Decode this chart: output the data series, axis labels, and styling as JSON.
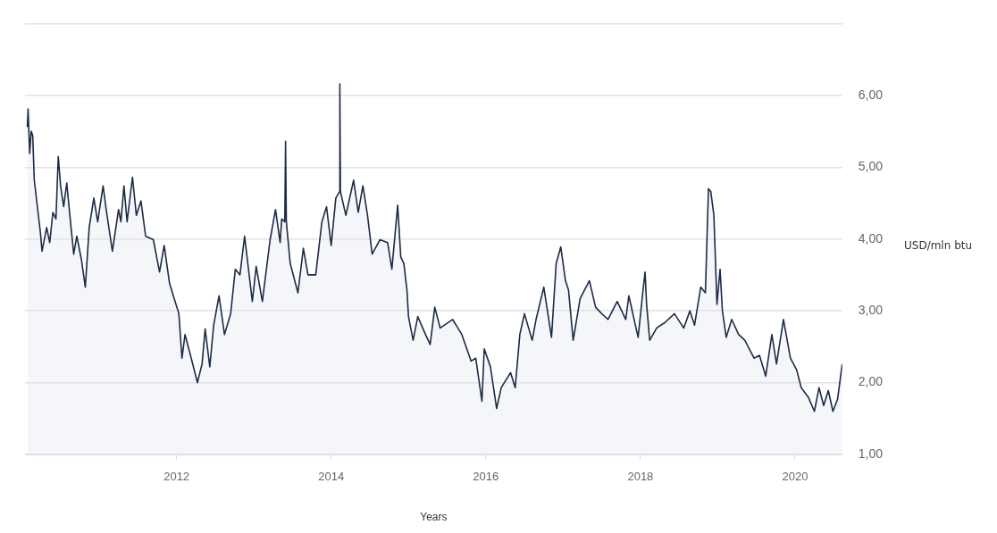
{
  "chart_data": {
    "type": "area",
    "xlabel": "Years",
    "ylabel": "USD/mln btu",
    "xlim": [
      2010.04,
      2020.61
    ],
    "xticks": [
      2012,
      2014,
      2016,
      2018,
      2020
    ],
    "ylim": [
      1,
      7
    ],
    "yticks": [
      {
        "value": 1,
        "label": "1,00"
      },
      {
        "value": 2,
        "label": "2,00"
      },
      {
        "value": 3,
        "label": "3,00"
      },
      {
        "value": 4,
        "label": "4,00"
      },
      {
        "value": 5,
        "label": "5,00"
      },
      {
        "value": 6,
        "label": "6,00"
      },
      {
        "value": 7,
        "label": null
      }
    ],
    "grid": "y",
    "legend": false,
    "marker": "none",
    "series": [
      {
        "color": "#1c2b45",
        "x": [
          2010.07,
          2010.08,
          2010.1,
          2010.12,
          2010.14,
          2010.16,
          2010.24,
          2010.26,
          2010.32,
          2010.36,
          2010.4,
          2010.44,
          2010.47,
          2010.5,
          2010.54,
          2010.58,
          2010.62,
          2010.67,
          2010.71,
          2010.77,
          2010.82,
          2010.87,
          2010.93,
          2010.98,
          2011.05,
          2011.09,
          2011.17,
          2011.25,
          2011.28,
          2011.32,
          2011.36,
          2011.43,
          2011.48,
          2011.54,
          2011.6,
          2011.7,
          2011.78,
          2011.84,
          2011.91,
          2011.97,
          2012.03,
          2012.07,
          2012.11,
          2012.19,
          2012.27,
          2012.33,
          2012.37,
          2012.43,
          2012.48,
          2012.55,
          2012.62,
          2012.7,
          2012.76,
          2012.82,
          2012.88,
          2012.98,
          2013.03,
          2013.11,
          2013.21,
          2013.28,
          2013.34,
          2013.36,
          2013.4,
          2013.41,
          2013.42,
          2013.47,
          2013.57,
          2013.64,
          2013.7,
          2013.8,
          2013.88,
          2013.94,
          2014.0,
          2014.06,
          2014.108,
          2014.112,
          2014.12,
          2014.19,
          2014.29,
          2014.35,
          2014.41,
          2014.47,
          2014.53,
          2014.63,
          2014.73,
          2014.785,
          2014.86,
          2014.9,
          2014.94,
          2014.98,
          2015.0,
          2015.06,
          2015.12,
          2015.22,
          2015.28,
          2015.34,
          2015.41,
          2015.57,
          2015.69,
          2015.81,
          2015.87,
          2015.95,
          2015.98,
          2016.06,
          2016.14,
          2016.2,
          2016.32,
          2016.38,
          2016.44,
          2016.5,
          2016.6,
          2016.65,
          2016.75,
          2016.85,
          2016.91,
          2016.97,
          2017.03,
          2017.07,
          2017.13,
          2017.22,
          2017.34,
          2017.42,
          2017.5,
          2017.58,
          2017.7,
          2017.81,
          2017.85,
          2017.97,
          2018.03,
          2018.06,
          2018.08,
          2018.12,
          2018.21,
          2018.32,
          2018.44,
          2018.56,
          2018.64,
          2018.7,
          2018.78,
          2018.84,
          2018.88,
          2018.91,
          2018.95,
          2018.99,
          2019.03,
          2019.06,
          2019.11,
          2019.18,
          2019.27,
          2019.35,
          2019.47,
          2019.54,
          2019.62,
          2019.7,
          2019.76,
          2019.85,
          2019.94,
          2020.02,
          2020.08,
          2020.17,
          2020.25,
          2020.31,
          2020.37,
          2020.43,
          2020.49,
          2020.55,
          2020.61
        ],
        "values": [
          5.56,
          5.81,
          5.19,
          5.5,
          5.44,
          4.82,
          4.08,
          3.83,
          4.16,
          3.95,
          4.37,
          4.28,
          5.15,
          4.74,
          4.45,
          4.78,
          4.33,
          3.79,
          4.04,
          3.71,
          3.33,
          4.16,
          4.57,
          4.24,
          4.74,
          4.41,
          3.83,
          4.41,
          4.24,
          4.74,
          4.24,
          4.86,
          4.33,
          4.53,
          4.04,
          3.99,
          3.54,
          3.91,
          3.38,
          3.17,
          2.96,
          2.34,
          2.67,
          2.34,
          2.0,
          2.26,
          2.75,
          2.22,
          2.8,
          3.21,
          2.67,
          2.96,
          3.58,
          3.5,
          4.04,
          3.13,
          3.62,
          3.13,
          3.99,
          4.41,
          3.95,
          4.28,
          4.24,
          5.36,
          4.24,
          3.66,
          3.25,
          3.87,
          3.5,
          3.5,
          4.24,
          4.45,
          3.91,
          4.57,
          4.66,
          6.16,
          4.66,
          4.33,
          4.82,
          4.37,
          4.74,
          4.33,
          3.79,
          3.99,
          3.95,
          3.58,
          4.47,
          3.75,
          3.66,
          3.29,
          2.92,
          2.59,
          2.92,
          2.67,
          2.53,
          3.05,
          2.76,
          2.88,
          2.67,
          2.3,
          2.34,
          1.74,
          2.47,
          2.22,
          1.64,
          1.93,
          2.14,
          1.93,
          2.67,
          2.96,
          2.59,
          2.88,
          3.33,
          2.63,
          3.66,
          3.89,
          3.42,
          3.29,
          2.59,
          3.17,
          3.42,
          3.05,
          2.96,
          2.88,
          3.13,
          2.88,
          3.21,
          2.63,
          3.25,
          3.54,
          3.09,
          2.59,
          2.76,
          2.84,
          2.96,
          2.76,
          3.0,
          2.8,
          3.33,
          3.25,
          4.7,
          4.66,
          4.33,
          3.09,
          3.58,
          3.0,
          2.63,
          2.88,
          2.67,
          2.59,
          2.34,
          2.38,
          2.09,
          2.67,
          2.26,
          2.88,
          2.34,
          2.18,
          1.93,
          1.8,
          1.6,
          1.93,
          1.68,
          1.89,
          1.6,
          1.77,
          2.26
        ]
      }
    ]
  }
}
